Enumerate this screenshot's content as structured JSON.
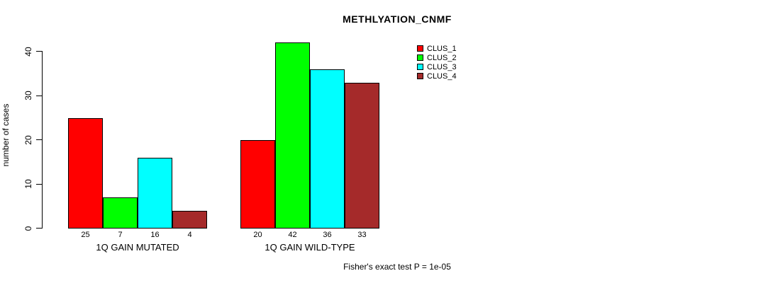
{
  "page": {
    "background_color": "#ffffff"
  },
  "chart_data": {
    "type": "bar",
    "title": "METHLYATION_CNMF",
    "xlabel": "",
    "ylabel": "number of cases",
    "ylim": [
      0,
      40
    ],
    "yticks": [
      0,
      10,
      20,
      30,
      40
    ],
    "grid": false,
    "legend_position": "top-right",
    "categories": [
      "1Q GAIN MUTATED",
      "1Q GAIN WILD-TYPE"
    ],
    "series": [
      {
        "name": "CLUS_1",
        "color": "#ff0000",
        "values": [
          25,
          20
        ]
      },
      {
        "name": "CLUS_2",
        "color": "#00ff00",
        "values": [
          7,
          42
        ]
      },
      {
        "name": "CLUS_3",
        "color": "#00ffff",
        "values": [
          16,
          36
        ]
      },
      {
        "name": "CLUS_4",
        "color": "#a52a2a",
        "values": [
          4,
          33
        ]
      }
    ],
    "value_labels_under_bars": true,
    "annotation": "Fisher's exact test P = 1e-05"
  }
}
